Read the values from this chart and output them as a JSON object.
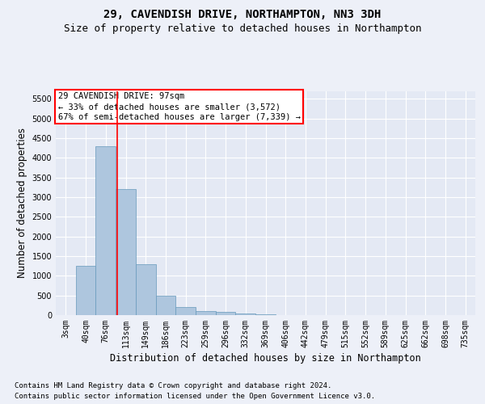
{
  "title_line1": "29, CAVENDISH DRIVE, NORTHAMPTON, NN3 3DH",
  "title_line2": "Size of property relative to detached houses in Northampton",
  "xlabel": "Distribution of detached houses by size in Northampton",
  "ylabel": "Number of detached properties",
  "categories": [
    "3sqm",
    "40sqm",
    "76sqm",
    "113sqm",
    "149sqm",
    "186sqm",
    "223sqm",
    "259sqm",
    "296sqm",
    "332sqm",
    "369sqm",
    "406sqm",
    "442sqm",
    "479sqm",
    "515sqm",
    "552sqm",
    "589sqm",
    "625sqm",
    "662sqm",
    "698sqm",
    "735sqm"
  ],
  "values": [
    0,
    1250,
    4300,
    3200,
    1300,
    500,
    200,
    100,
    75,
    50,
    30,
    0,
    0,
    0,
    0,
    0,
    0,
    0,
    0,
    0,
    0
  ],
  "bar_color": "#aec6de",
  "bar_edge_color": "#6699bb",
  "annotation_box_text": "29 CAVENDISH DRIVE: 97sqm\n← 33% of detached houses are smaller (3,572)\n67% of semi-detached houses are larger (7,339) →",
  "ylim": [
    0,
    5700
  ],
  "yticks": [
    0,
    500,
    1000,
    1500,
    2000,
    2500,
    3000,
    3500,
    4000,
    4500,
    5000,
    5500
  ],
  "footnote1": "Contains HM Land Registry data © Crown copyright and database right 2024.",
  "footnote2": "Contains public sector information licensed under the Open Government Licence v3.0.",
  "bg_color": "#edf0f8",
  "plot_bg_color": "#e4e9f4",
  "grid_color": "#ffffff",
  "title_fontsize": 10,
  "subtitle_fontsize": 9,
  "annot_fontsize": 7.5,
  "tick_fontsize": 7,
  "label_fontsize": 8.5,
  "footnote_fontsize": 6.5
}
